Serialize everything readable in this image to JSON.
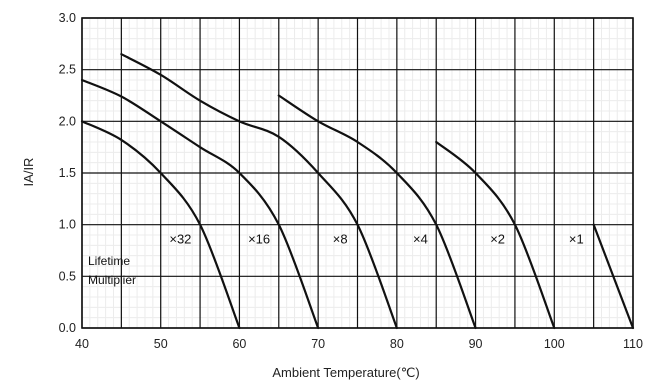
{
  "chart_data": {
    "type": "line",
    "title": "",
    "xlabel": "Ambient Temperature(℃)",
    "ylabel": "IA/IR",
    "xlim": [
      40,
      110
    ],
    "ylim": [
      0,
      3.0
    ],
    "x_ticks": [
      "40",
      "50",
      "60",
      "70",
      "80",
      "90",
      "100",
      "110"
    ],
    "y_ticks": [
      "0.0",
      "0.5",
      "1.0",
      "1.5",
      "2.0",
      "2.5",
      "3.0"
    ],
    "grid": {
      "major_x_step": 5,
      "major_y_step": 0.5,
      "minor": true
    },
    "annotations": {
      "note_line1": "Lifetime",
      "note_line2": "Multiplier",
      "multipliers": [
        {
          "label": "×32",
          "x": 52.5,
          "y": 0.82
        },
        {
          "label": "×16",
          "x": 62.5,
          "y": 0.82
        },
        {
          "label": "×8",
          "x": 72.8,
          "y": 0.82
        },
        {
          "label": "×4",
          "x": 83.0,
          "y": 0.82
        },
        {
          "label": "×2",
          "x": 92.8,
          "y": 0.82
        },
        {
          "label": "×1",
          "x": 102.8,
          "y": 0.82
        }
      ]
    },
    "series": [
      {
        "points": [
          [
            40,
            2.0
          ],
          [
            45,
            1.82
          ],
          [
            50,
            1.5
          ],
          [
            55,
            1.0
          ],
          [
            60,
            0.0
          ]
        ]
      },
      {
        "points": [
          [
            40,
            2.4
          ],
          [
            45,
            2.24
          ],
          [
            50,
            2.0
          ],
          [
            55,
            1.75
          ],
          [
            60,
            1.5
          ],
          [
            65,
            1.0
          ],
          [
            70,
            0.0
          ]
        ]
      },
      {
        "points": [
          [
            45,
            2.65
          ],
          [
            50,
            2.45
          ],
          [
            55,
            2.2
          ],
          [
            60,
            2.0
          ],
          [
            65,
            1.85
          ],
          [
            70,
            1.5
          ],
          [
            75,
            1.0
          ],
          [
            80,
            0.0
          ]
        ]
      },
      {
        "points": [
          [
            65,
            2.25
          ],
          [
            70,
            2.0
          ],
          [
            75,
            1.8
          ],
          [
            80,
            1.5
          ],
          [
            85,
            1.0
          ],
          [
            90,
            0.0
          ]
        ]
      },
      {
        "points": [
          [
            85,
            1.8
          ],
          [
            90,
            1.5
          ],
          [
            95,
            1.0
          ],
          [
            100,
            0.0
          ]
        ]
      },
      {
        "points": [
          [
            105,
            1.0
          ],
          [
            110,
            0.0
          ]
        ]
      }
    ]
  }
}
